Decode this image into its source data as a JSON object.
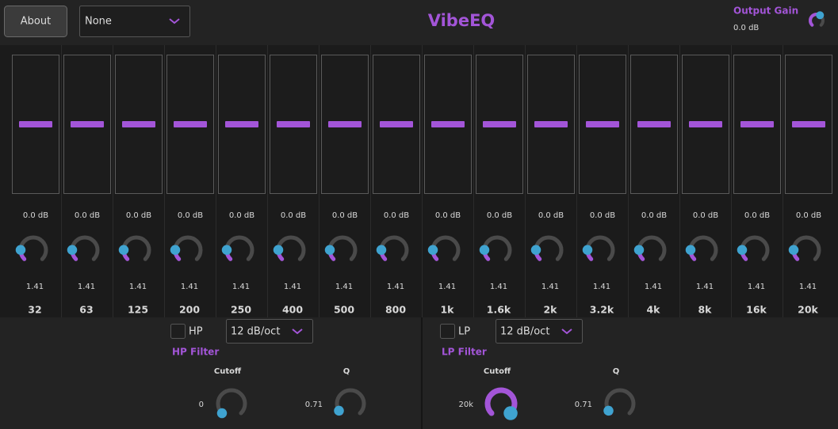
{
  "header": {
    "about": "About",
    "preset": "None",
    "title": "VibeEQ",
    "output_gain": {
      "label": "Output Gain",
      "value": "0.0 dB"
    }
  },
  "bands": [
    {
      "gain": "0.0 dB",
      "q": "1.41",
      "freq": "32"
    },
    {
      "gain": "0.0 dB",
      "q": "1.41",
      "freq": "63"
    },
    {
      "gain": "0.0 dB",
      "q": "1.41",
      "freq": "125"
    },
    {
      "gain": "0.0 dB",
      "q": "1.41",
      "freq": "200"
    },
    {
      "gain": "0.0 dB",
      "q": "1.41",
      "freq": "250"
    },
    {
      "gain": "0.0 dB",
      "q": "1.41",
      "freq": "400"
    },
    {
      "gain": "0.0 dB",
      "q": "1.41",
      "freq": "500"
    },
    {
      "gain": "0.0 dB",
      "q": "1.41",
      "freq": "800"
    },
    {
      "gain": "0.0 dB",
      "q": "1.41",
      "freq": "1k"
    },
    {
      "gain": "0.0 dB",
      "q": "1.41",
      "freq": "1.6k"
    },
    {
      "gain": "0.0 dB",
      "q": "1.41",
      "freq": "2k"
    },
    {
      "gain": "0.0 dB",
      "q": "1.41",
      "freq": "3.2k"
    },
    {
      "gain": "0.0 dB",
      "q": "1.41",
      "freq": "4k"
    },
    {
      "gain": "0.0 dB",
      "q": "1.41",
      "freq": "8k"
    },
    {
      "gain": "0.0 dB",
      "q": "1.41",
      "freq": "16k"
    },
    {
      "gain": "0.0 dB",
      "q": "1.41",
      "freq": "20k"
    }
  ],
  "hp_filter": {
    "toggle": "HP",
    "slope": "12 dB/oct",
    "title": "HP Filter",
    "cutoff": {
      "label": "Cutoff",
      "value": "0"
    },
    "q": {
      "label": "Q",
      "value": "0.71"
    }
  },
  "lp_filter": {
    "toggle": "LP",
    "slope": "12 dB/oct",
    "title": "LP Filter",
    "cutoff": {
      "label": "Cutoff",
      "value": "20k"
    },
    "q": {
      "label": "Q",
      "value": "0.71"
    }
  }
}
